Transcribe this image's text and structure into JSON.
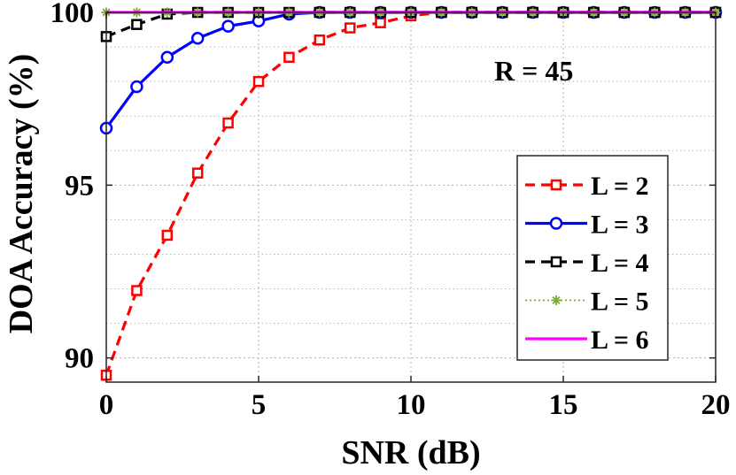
{
  "chart_data": {
    "type": "line",
    "title": "",
    "xlabel": "SNR (dB)",
    "ylabel": "DOA Accuracy (%)",
    "xlim": [
      0,
      20
    ],
    "ylim": [
      89.3,
      100
    ],
    "xticks": [
      0,
      5,
      10,
      15,
      20
    ],
    "yticks": [
      90,
      95,
      100
    ],
    "grid": true,
    "annotation": "R = 45",
    "legend_position": "lower-right",
    "x": [
      0,
      1,
      2,
      3,
      4,
      5,
      6,
      7,
      8,
      9,
      10,
      11,
      12,
      13,
      14,
      15,
      16,
      17,
      18,
      19,
      20
    ],
    "series": [
      {
        "name": "L = 2",
        "color": "#ff0000",
        "line": "dashed",
        "marker": "square-open",
        "values": [
          89.5,
          91.95,
          93.55,
          95.35,
          96.8,
          98.0,
          98.7,
          99.2,
          99.55,
          99.7,
          99.9,
          100,
          100,
          100,
          100,
          100,
          100,
          100,
          100,
          100,
          100
        ]
      },
      {
        "name": "L = 3",
        "color": "#0000ff",
        "line": "solid",
        "marker": "circle-open",
        "values": [
          96.65,
          97.85,
          98.7,
          99.25,
          99.6,
          99.75,
          99.95,
          100,
          100,
          100,
          100,
          100,
          100,
          100,
          100,
          100,
          100,
          100,
          100,
          100,
          100
        ]
      },
      {
        "name": "L = 4",
        "color": "#000000",
        "line": "dashed",
        "marker": "square-open",
        "values": [
          99.3,
          99.65,
          99.95,
          100,
          100,
          100,
          100,
          100,
          100,
          100,
          100,
          100,
          100,
          100,
          100,
          100,
          100,
          100,
          100,
          100,
          100
        ]
      },
      {
        "name": "L = 5",
        "color": "#77ac30",
        "line": "dotted",
        "marker": "asterisk",
        "values": [
          100,
          100,
          100,
          100,
          100,
          100,
          100,
          100,
          100,
          100,
          100,
          100,
          100,
          100,
          100,
          100,
          100,
          100,
          100,
          100,
          100
        ]
      },
      {
        "name": "L = 6",
        "color": "#ff00ff",
        "line": "solid",
        "marker": "none",
        "values": [
          100,
          100,
          100,
          100,
          100,
          100,
          100,
          100,
          100,
          100,
          100,
          100,
          100,
          100,
          100,
          100,
          100,
          100,
          100,
          100,
          100
        ]
      }
    ]
  }
}
